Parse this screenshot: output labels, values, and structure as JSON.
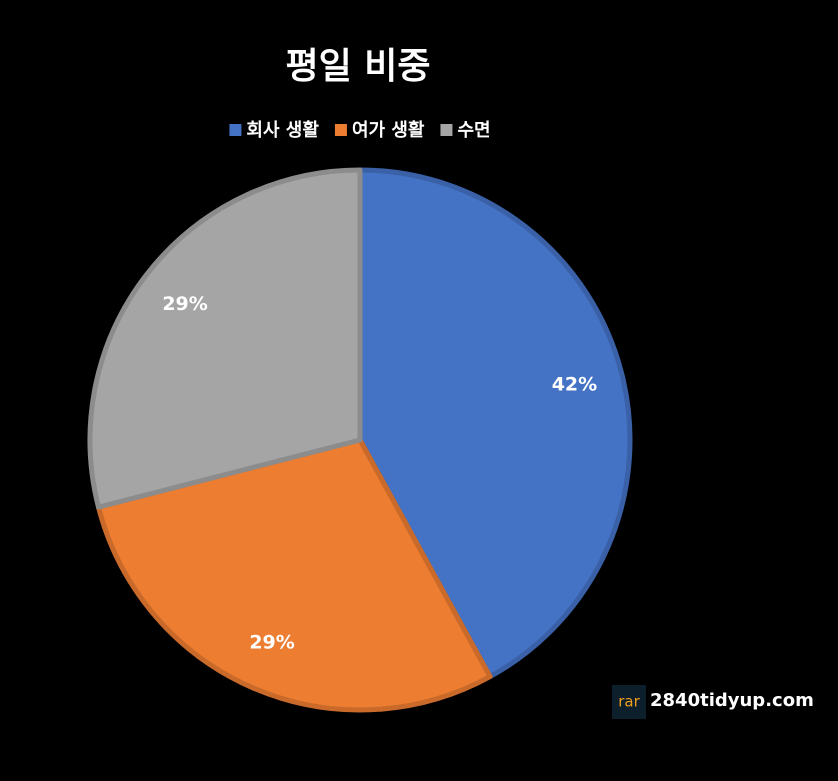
{
  "chart_data": {
    "type": "pie",
    "title": "평일 비중",
    "categories": [
      "회사 생활",
      "여가 생활",
      "수면"
    ],
    "values": [
      42,
      29,
      29
    ],
    "value_labels": [
      "42%",
      "29%",
      "29%"
    ],
    "colors": [
      "#4472c4",
      "#ed7d31",
      "#a5a5a5"
    ],
    "legend": "top",
    "watermark_icon": "rar",
    "watermark_text": "2840tidyup.com"
  }
}
